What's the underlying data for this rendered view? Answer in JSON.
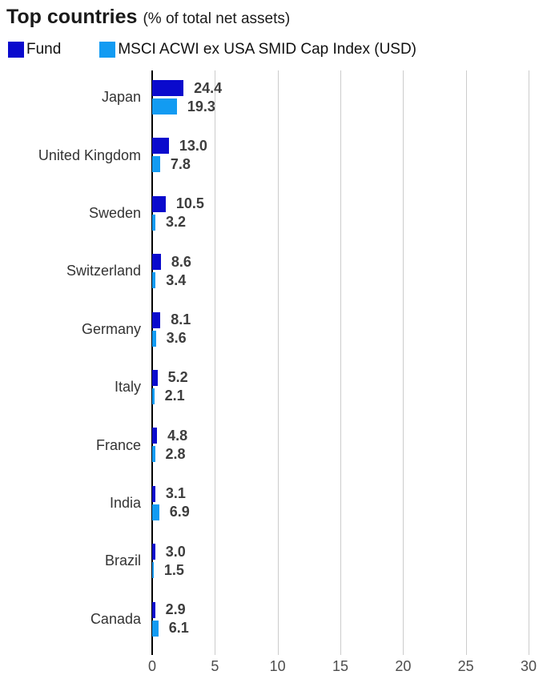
{
  "chart_data": {
    "type": "bar",
    "orientation": "horizontal",
    "title": "Top countries",
    "subtitle": "(% of total net assets)",
    "categories": [
      "Japan",
      "United Kingdom",
      "Sweden",
      "Switzerland",
      "Germany",
      "Italy",
      "France",
      "India",
      "Brazil",
      "Canada"
    ],
    "series": [
      {
        "name": "Fund",
        "color": "#0a0acd",
        "values": [
          24.4,
          13.0,
          10.5,
          8.6,
          8.1,
          5.2,
          4.8,
          3.1,
          3.0,
          2.9
        ]
      },
      {
        "name": "MSCI ACWI ex USA SMID Cap Index (USD)",
        "color": "#129bf2",
        "values": [
          19.3,
          7.8,
          3.2,
          3.4,
          3.6,
          2.1,
          2.8,
          6.9,
          1.5,
          6.1
        ]
      }
    ],
    "xlabel": "",
    "ylabel": "",
    "xlim": [
      0,
      30
    ],
    "xticks": [
      0,
      5,
      10,
      15,
      20,
      25,
      30
    ],
    "grid": true,
    "legend_position": "top-left",
    "value_labels": true,
    "value_label_decimals": 1
  },
  "colors": {
    "grid": "#cccccc",
    "axis": "#000000",
    "value_label": "#3d3d3d",
    "tick_label": "#4d4d4d",
    "category_label": "#333333"
  }
}
